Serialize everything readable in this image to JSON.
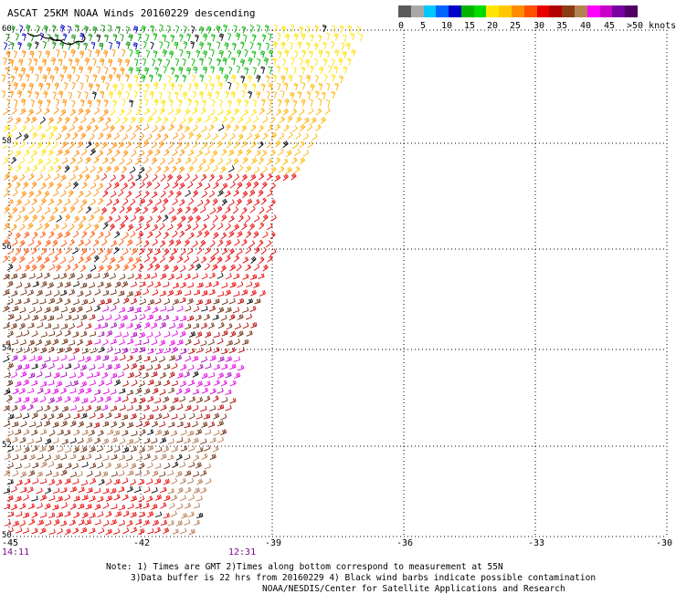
{
  "title": "ASCAT 25KM NOAA Winds 20160229 descending",
  "legend": {
    "colors": [
      "#5a5a5a",
      "#a8a8a8",
      "#00c8ff",
      "#0064ff",
      "#0000c8",
      "#00b400",
      "#00dc00",
      "#ffe600",
      "#ffc800",
      "#ff8c00",
      "#ff5000",
      "#e60000",
      "#b40000",
      "#8c3c14",
      "#b48250",
      "#ff00ff",
      "#c800c8",
      "#7800a0",
      "#500064"
    ],
    "labels": [
      "0",
      "5",
      "10",
      "15",
      "20",
      "25",
      "30",
      "35",
      "40",
      "45",
      ">50 knots"
    ]
  },
  "map": {
    "lat_labels": [
      "60",
      "58",
      "56",
      "54",
      "52",
      "50"
    ],
    "lon_labels": [
      "-45",
      "-42",
      "-39",
      "-36",
      "-33",
      "-30"
    ],
    "time_labels": [
      "14:11",
      "12:31"
    ],
    "lat_range": [
      50,
      60
    ],
    "lon_range": [
      -45,
      -30
    ]
  },
  "notes": {
    "line1": "Note: 1) Times are GMT 2)Times along bottom correspond to measurement at 55N",
    "line2": "3)Data buffer is 22 hrs from 20160229 4) Black wind barbs indicate possible contamination",
    "line3": "NOAA/NESDIS/Center for Satellite Applications and Research"
  }
}
